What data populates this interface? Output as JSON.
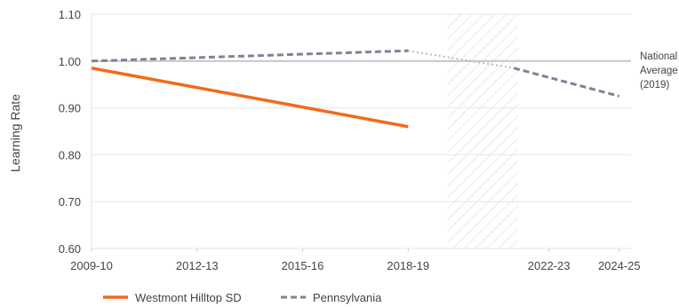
{
  "chart_data": {
    "type": "line",
    "ylabel": "Learning Rate",
    "ylim": [
      0.6,
      1.1
    ],
    "y_ticks": [
      "0.60",
      "0.70",
      "0.80",
      "0.90",
      "1.00",
      "1.10"
    ],
    "x_range": [
      2009,
      2024
    ],
    "x_ticks": [
      {
        "x": 2009,
        "label": "2009-10"
      },
      {
        "x": 2012,
        "label": "2012-13"
      },
      {
        "x": 2015,
        "label": "2015-16"
      },
      {
        "x": 2018,
        "label": "2018-19"
      },
      {
        "x": 2022,
        "label": "2022-23"
      },
      {
        "x": 2024,
        "label": "2024-25"
      }
    ],
    "shaded_region": [
      2019,
      2021
    ],
    "reference_line": {
      "y": 1.0,
      "label": [
        "National",
        "Average",
        "(2019)"
      ]
    },
    "series": [
      {
        "name": "Westmont Hilltop SD",
        "color": "#f26a1b",
        "style": "solid",
        "points": [
          [
            2009,
            0.985
          ],
          [
            2018,
            0.86
          ]
        ]
      },
      {
        "name": "Pennsylvania",
        "color": "#7b8494",
        "style": "dashed",
        "points": [
          [
            2009,
            1.0
          ],
          [
            2018,
            1.022
          ]
        ],
        "projection_dotted": [
          [
            2018,
            1.022
          ],
          [
            2021,
            0.985
          ]
        ],
        "projection_dashed": [
          [
            2021,
            0.985
          ],
          [
            2024,
            0.925
          ]
        ]
      }
    ]
  }
}
